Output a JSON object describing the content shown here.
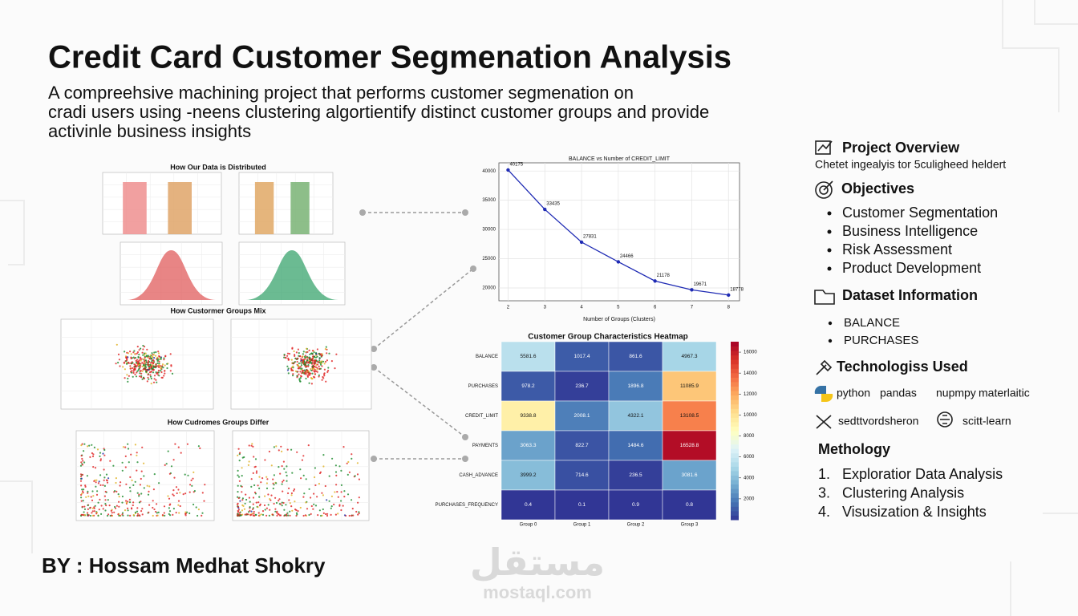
{
  "header": {
    "title": "Credit Card Customer Segmenation Analysis",
    "subtitle_lines": [
      "A compreehsive machining project  that performs customer segmenation on",
      "cradi users using -neens clustering algortientify distinct customer groups and provide",
      "activinle business insights"
    ]
  },
  "author": "BY : Hossam Medhat Shokry",
  "watermark": {
    "logo": "مستقل",
    "site": "mostaql.com"
  },
  "panels": {
    "distribution_title": "How Our Data is Distributed",
    "mix_title": "How Custormer Groups Mix",
    "differ_title": "How Cudromes Groups Differ"
  },
  "elbow_chart": {
    "type": "line",
    "title": "BALANCE vs Number of CREDIT_LIMIT",
    "x_label": "Number of Groups (Clusters)",
    "x": [
      2,
      3,
      4,
      5,
      6,
      7,
      8
    ],
    "values": [
      40175,
      33435,
      27831,
      24466,
      21178,
      19671,
      18778
    ],
    "value_labels": [
      "40175",
      "33435",
      "27831",
      "24466",
      "21178",
      "19671",
      "18778"
    ],
    "color": "#1f2bb4",
    "xlim": [
      1.75,
      8.3
    ],
    "ylim": [
      17800,
      41400
    ],
    "xticks": [
      2,
      3,
      4,
      5,
      6,
      7,
      8
    ],
    "yticks": [
      20000,
      25000,
      30000,
      35000,
      40000
    ],
    "grid": true
  },
  "heatmap": {
    "type": "heatmap",
    "title": "Customer Group Characteristics Heatmap",
    "rows": [
      "BALANCE",
      "PURCHASES",
      "CREDIT_LIMIT",
      "PAYMENTS",
      "CASH_ADVANCE",
      "PURCHASES_FREQUENCY"
    ],
    "columns": [
      "Group 0",
      "Group 1",
      "Group 2",
      "Group 3"
    ],
    "values": [
      [
        5581.6,
        1017.4,
        861.6,
        4967.3
      ],
      [
        978.2,
        236.7,
        1896.8,
        11085.9
      ],
      [
        9338.8,
        2008.1,
        4322.1,
        13108.5
      ],
      [
        3063.3,
        822.7,
        1484.6,
        16528.8
      ],
      [
        3999.2,
        714.6,
        236.5,
        3081.6
      ],
      [
        0.4,
        0.1,
        0.9,
        0.8
      ]
    ],
    "clim": [
      0,
      17000
    ],
    "colorbar_ticks": [
      2000,
      4000,
      6000,
      8000,
      10000,
      12000,
      14000,
      16000
    ],
    "colormap": [
      "#313695",
      "#4575b4",
      "#74add1",
      "#abd9e9",
      "#e0f3f8",
      "#ffffbf",
      "#fee090",
      "#fdae61",
      "#f46d43",
      "#d73027",
      "#a50026"
    ]
  },
  "sidebar": {
    "overview": {
      "heading": "Project Overview",
      "text": "Chetet ingealyis tor 5culigheed heldert"
    },
    "objectives": {
      "heading": "Objectives",
      "items": [
        "Customer Segmentation",
        "Business Intelligence",
        "Risk Assessment",
        "Product Development"
      ]
    },
    "dataset": {
      "heading": "Dataset Information",
      "items": [
        "BALANCE",
        "PURCHASES"
      ]
    },
    "technologies": {
      "heading": "Technologiss Used",
      "items": [
        "python",
        "pandas",
        "nupmpy",
        "materlaitic",
        "sedttvordsheron",
        "scitt-learn"
      ]
    },
    "methodology": {
      "heading": "Methology",
      "items": [
        {
          "number": "1.",
          "text": "Exploratior Data Analysis"
        },
        {
          "number": "3.",
          "text": "Clustering Analysis"
        },
        {
          "number": "4.",
          "text": "Visusization & Insights"
        }
      ]
    }
  }
}
